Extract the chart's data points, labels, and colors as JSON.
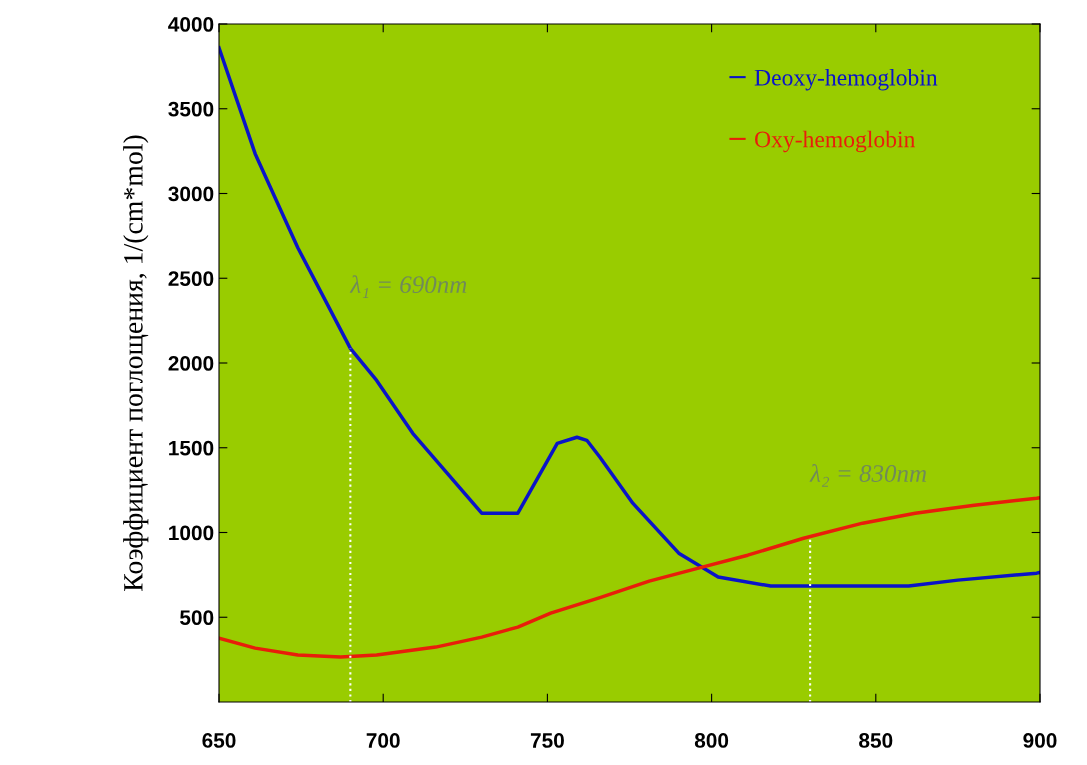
{
  "chart_data": {
    "type": "line",
    "ylabel": "Коэффициент поглощения, 1/(cm*mol)",
    "xlim": [
      650,
      900
    ],
    "xticks": [
      650,
      700,
      750,
      800,
      850,
      900
    ],
    "ylim": [
      0,
      4000
    ],
    "yticks": [
      500,
      1000,
      1500,
      2000,
      2500,
      3000,
      3500,
      4000
    ],
    "grid": false,
    "legend": "top right",
    "series": [
      {
        "name": "Deoxy-hemoglobin",
        "color": "#0a14c8",
        "x": [
          650,
          661,
          674,
          690,
          698,
          709,
          730,
          741,
          753,
          759,
          762,
          766,
          776,
          790,
          802,
          818,
          860,
          875,
          899,
          900
        ],
        "values": [
          3860,
          3235,
          2680,
          2086,
          1897,
          1585,
          1114,
          1114,
          1526,
          1562,
          1544,
          1444,
          1173,
          878,
          737,
          684,
          684,
          719,
          760,
          765
        ]
      },
      {
        "name": "Oxy-hemoglobin",
        "color": "#e81e0a",
        "x": [
          650,
          661,
          674,
          687,
          698,
          716,
          730,
          741,
          751,
          766,
          781,
          796,
          811,
          828,
          846,
          862,
          880,
          899,
          900
        ],
        "values": [
          377,
          318,
          277,
          265,
          277,
          324,
          383,
          442,
          524,
          616,
          713,
          790,
          866,
          966,
          1055,
          1114,
          1161,
          1202,
          1205
        ]
      },
      {
        "type": "line",
        "color": "#ffffff",
        "line_style": "dotted",
        "x": [
          690,
          690
        ],
        "values": [
          0,
          2086
        ]
      },
      {
        "type": "line",
        "color": "#ffffff",
        "line_style": "dotted",
        "x": [
          830,
          830
        ],
        "values": [
          0,
          972
        ]
      }
    ],
    "annotations": [
      {
        "text": "λ₁ = 690nm",
        "x": 690,
        "y": 2086
      },
      {
        "text": "λ₂ = 830nm",
        "x": 830,
        "y": 972
      }
    ]
  }
}
